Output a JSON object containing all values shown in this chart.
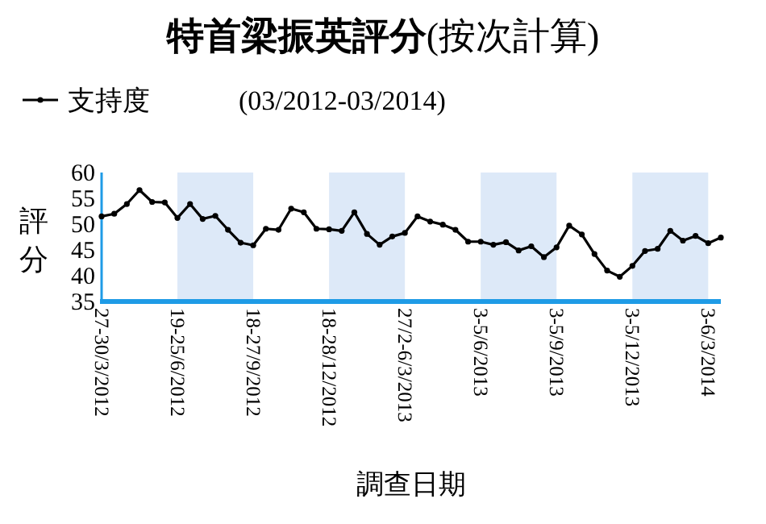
{
  "chart_data": {
    "type": "line",
    "title": "**特首梁振英評分**(按次計算)",
    "subtitle": "(03/2012-03/2014)",
    "xlabel": "調查日期",
    "ylabel": "評分",
    "categories": [
      "27-30/3/2012",
      null,
      null,
      null,
      null,
      null,
      "19-25/6/2012",
      null,
      null,
      null,
      null,
      null,
      "18-27/9/2012",
      null,
      null,
      null,
      null,
      null,
      "18-28/12/2012",
      null,
      null,
      null,
      null,
      null,
      "27/2-6/3/2013",
      null,
      null,
      null,
      null,
      null,
      "3-5/6/2013",
      null,
      null,
      null,
      null,
      null,
      "3-5/9/2013",
      null,
      null,
      null,
      null,
      null,
      "3-5/12/2013",
      null,
      null,
      null,
      null,
      null,
      "3-6/3/2014",
      null
    ],
    "series": [
      {
        "name": "支持度",
        "color": "#000000",
        "values": [
          51.5,
          52,
          53.9,
          56.6,
          54.3,
          54.2,
          51.2,
          53.9,
          51,
          51.6,
          48.9,
          46.4,
          45.9,
          49.1,
          48.9,
          53,
          52.3,
          49.1,
          49,
          48.7,
          52.3,
          48.1,
          46,
          47.6,
          48.3,
          51.5,
          50.5,
          49.9,
          48.9,
          46.6,
          46.6,
          46,
          46.5,
          44.9,
          45.7,
          43.6,
          45.5,
          49.7,
          48,
          44.2,
          41,
          39.8,
          41.9,
          44.8,
          45.2,
          48.7,
          46.8,
          47.7,
          46.3,
          47.4
        ]
      }
    ],
    "ylim": [
      35,
      60
    ],
    "yticks": [
      35,
      40,
      45,
      50,
      55,
      60
    ],
    "bands": [
      {
        "axis": "x",
        "from": "19-25/6/2012",
        "to": "18-27/9/2012",
        "color": "#dde9f8"
      },
      {
        "axis": "x",
        "from": "18-28/12/2012",
        "to": "27/2-6/3/2013",
        "color": "#dde9f8"
      },
      {
        "axis": "x",
        "from": "3-5/6/2013",
        "to": "3-5/9/2013",
        "color": "#dde9f8"
      },
      {
        "axis": "x",
        "from": "3-5/12/2013",
        "to": "3-6/3/2014",
        "color": "#dde9f8"
      }
    ],
    "legend": "top left",
    "marker": "circle",
    "line_style": "solid"
  }
}
